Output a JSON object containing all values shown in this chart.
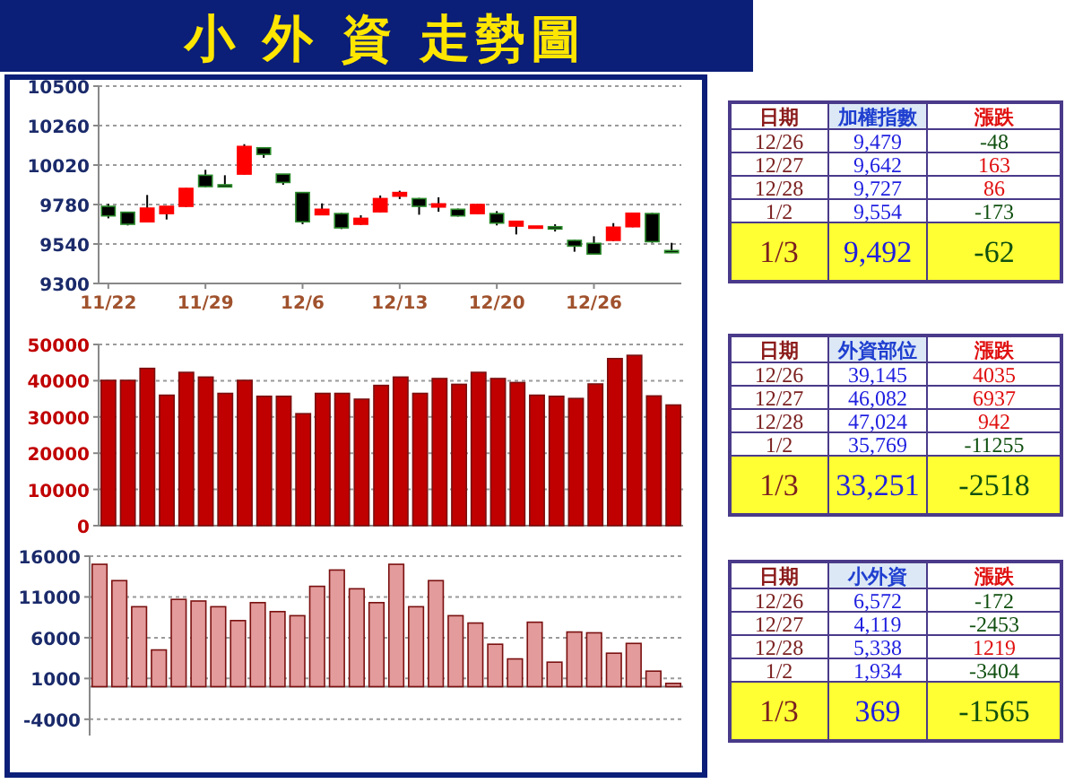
{
  "chart_data": [
    {
      "type": "candlestick",
      "title": "小 外 資 走勢圖",
      "categories": [
        "11/22",
        null,
        null,
        null,
        null,
        "11/29",
        null,
        null,
        null,
        null,
        "12/6",
        null,
        null,
        null,
        null,
        "12/13",
        null,
        null,
        null,
        null,
        "12/20",
        null,
        null,
        null,
        null,
        "12/26",
        null,
        null,
        null,
        null
      ],
      "ohlc": [
        [
          9769,
          9784,
          9696,
          9711
        ],
        [
          9733,
          9736,
          9653,
          9660
        ],
        [
          9675,
          9838,
          9672,
          9758
        ],
        [
          9725,
          9769,
          9689,
          9769
        ],
        [
          9769,
          9880,
          9765,
          9878
        ],
        [
          9958,
          9991,
          9885,
          9889
        ],
        [
          9900,
          9958,
          9885,
          9889
        ],
        [
          9965,
          10147,
          9962,
          10133
        ],
        [
          10125,
          10129,
          10064,
          10085
        ],
        [
          9965,
          9965,
          9900,
          9914
        ],
        [
          9853,
          9853,
          9660,
          9675
        ],
        [
          9718,
          9787,
          9715,
          9751
        ],
        [
          9725,
          9729,
          9631,
          9638
        ],
        [
          9660,
          9715,
          9656,
          9696
        ],
        [
          9736,
          9835,
          9733,
          9816
        ],
        [
          9831,
          9864,
          9813,
          9853
        ],
        [
          9816,
          9820,
          9718,
          9769
        ],
        [
          9765,
          9824,
          9736,
          9784
        ],
        [
          9751,
          9755,
          9707,
          9711
        ],
        [
          9725,
          9784,
          9722,
          9780
        ],
        [
          9725,
          9740,
          9653,
          9667
        ],
        [
          9649,
          9682,
          9598,
          9678
        ],
        [
          9638,
          9649,
          9638,
          9649
        ],
        [
          9645,
          9660,
          9616,
          9631
        ],
        [
          9562,
          9565,
          9493,
          9527
        ],
        [
          9544,
          9587,
          9475,
          9479
        ],
        [
          9562,
          9667,
          9558,
          9642
        ],
        [
          9645,
          9727,
          9642,
          9727
        ],
        [
          9725,
          9729,
          9547,
          9554
        ],
        [
          9500,
          9547,
          9485,
          9492
        ]
      ],
      "colors": [
        "#000000",
        "#000000",
        "#ff0000",
        "#ff0000",
        "#ff0000",
        "#000000",
        "#000000",
        "#ff0000",
        "#000000",
        "#000000",
        "#000000",
        "#ff0000",
        "#000000",
        "#ff0000",
        "#ff0000",
        "#ff0000",
        "#000000",
        "#ff0000",
        "#000000",
        "#ff0000",
        "#000000",
        "#ff0000",
        "#ff0000",
        "#000000",
        "#000000",
        "#000000",
        "#ff0000",
        "#ff0000",
        "#000000",
        "#000000"
      ],
      "ylim": [
        9300,
        10500
      ],
      "yticks": [
        9300,
        9540,
        9780,
        10020,
        10260,
        10500
      ],
      "grid": "y"
    },
    {
      "type": "bar",
      "categories": [
        null,
        null,
        null,
        null,
        null,
        null,
        null,
        null,
        null,
        null,
        null,
        null,
        null,
        null,
        null,
        null,
        null,
        null,
        null,
        null,
        null,
        null,
        null,
        null,
        null,
        null,
        null,
        null,
        null,
        null
      ],
      "series": [
        {
          "color": "#c00000",
          "values": [
            40100,
            40100,
            43400,
            36000,
            42300,
            41000,
            36500,
            40100,
            35700,
            35700,
            30900,
            36500,
            36500,
            34900,
            38700,
            41000,
            36500,
            40600,
            39000,
            42300,
            40600,
            39500,
            36000,
            35700,
            35100,
            39100,
            46100,
            47000,
            35800,
            33300
          ]
        }
      ],
      "ylim": [
        0,
        50000
      ],
      "yticks": [
        0,
        10000,
        20000,
        30000,
        40000,
        50000
      ],
      "grid": "y",
      "tick_labels": "y"
    },
    {
      "type": "bar",
      "categories": [
        null,
        null,
        null,
        null,
        null,
        null,
        null,
        null,
        null,
        null,
        null,
        null,
        null,
        null,
        null,
        null,
        null,
        null,
        null,
        null,
        null,
        null,
        null,
        null,
        null,
        null,
        null,
        null,
        null,
        null
      ],
      "series": [
        {
          "color": "#e39b9b",
          "values": [
            15000,
            13000,
            9800,
            4500,
            10700,
            10500,
            9800,
            8100,
            10300,
            9200,
            8700,
            12300,
            14300,
            12000,
            10300,
            15000,
            9800,
            13000,
            8700,
            7800,
            5200,
            3400,
            7900,
            3000,
            6700,
            6600,
            4100,
            5300,
            1900,
            400
          ]
        }
      ],
      "ylim": [
        -6000,
        16000
      ],
      "yticks": [
        -4000,
        1000,
        6000,
        11000,
        16000
      ],
      "grid": "y",
      "tick_labels": "y"
    },
    {
      "type": "other",
      "categories": [
        "日期",
        "加權指數",
        "漲跌"
      ],
      "annotations": [
        "12/26",
        "9,479",
        "-48",
        "12/27",
        "9,642",
        "163",
        "12/28",
        "9,727",
        "86",
        "1/2",
        "9,554",
        "-173",
        "1/3",
        "9,492",
        "-62"
      ]
    },
    {
      "type": "other",
      "categories": [
        "日期",
        "外資部位",
        "漲跌"
      ],
      "annotations": [
        "12/26",
        "39,145",
        "4035",
        "12/27",
        "46,082",
        "6937",
        "12/28",
        "47,024",
        "942",
        "1/2",
        "35,769",
        "-11255",
        "1/3",
        "33,251",
        "-2518"
      ]
    },
    {
      "type": "other",
      "categories": [
        "日期",
        "小外資",
        "漲跌"
      ],
      "annotations": [
        "12/26",
        "6,572",
        "-172",
        "12/27",
        "4,119",
        "-2453",
        "12/28",
        "5,338",
        "1219",
        "1/2",
        "1,934",
        "-3404",
        "1/3",
        "369",
        "-1565"
      ]
    }
  ]
}
